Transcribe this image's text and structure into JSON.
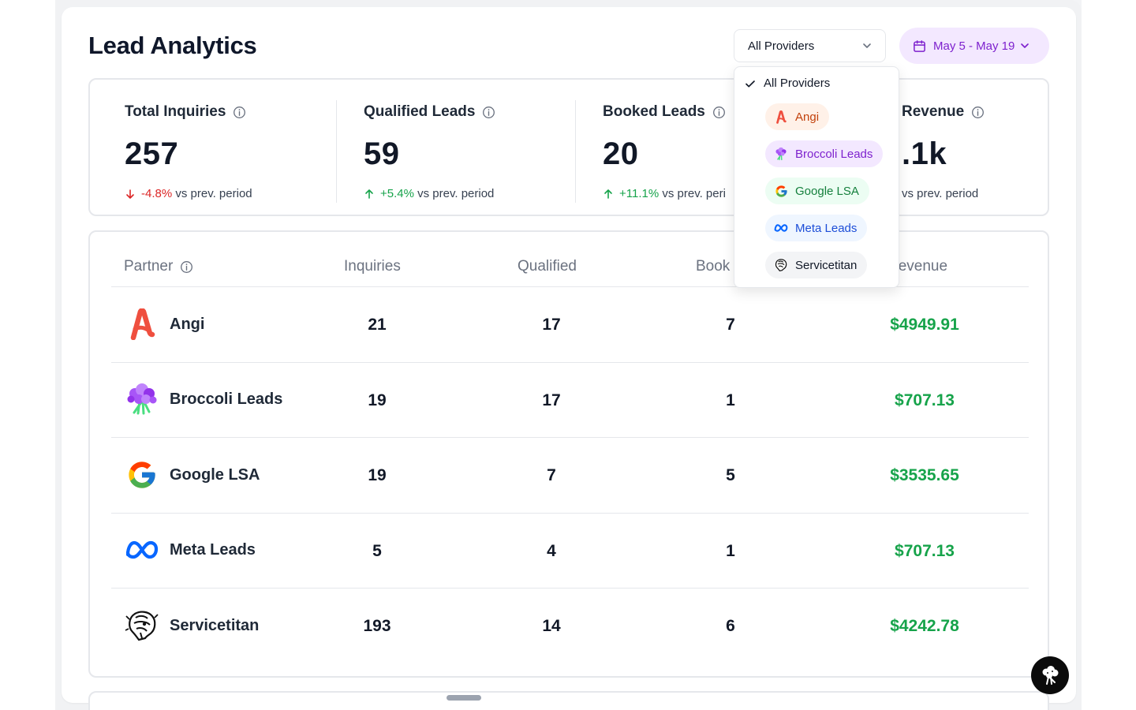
{
  "header": {
    "title": "Lead Analytics",
    "provider_filter": "All Providers",
    "date_range": "May 5 - May 19"
  },
  "stats": [
    {
      "label": "Total Inquiries",
      "value": "257",
      "delta": "-4.8%",
      "delta_suffix": "vs prev. period",
      "direction": "down"
    },
    {
      "label": "Qualified Leads",
      "value": "59",
      "delta": "+5.4%",
      "delta_suffix": "vs prev. period",
      "direction": "up"
    },
    {
      "label": "Booked Leads",
      "value": "20",
      "delta": "+11.1%",
      "delta_suffix": "vs prev. peri",
      "direction": "up"
    },
    {
      "label": "Revenue",
      "value": ".1k",
      "delta": "",
      "delta_suffix": "vs prev. period",
      "direction": "up"
    }
  ],
  "table": {
    "headers": {
      "partner": "Partner",
      "inquiries": "Inquiries",
      "qualified": "Qualified",
      "booked": "Book",
      "revenue": "Revenue"
    },
    "rows": [
      {
        "partner": "Angi",
        "icon": "angi-logo-icon",
        "inquiries": "21",
        "qualified": "17",
        "booked": "7",
        "revenue": "$4949.91"
      },
      {
        "partner": "Broccoli Leads",
        "icon": "broccoli-logo-icon",
        "inquiries": "19",
        "qualified": "17",
        "booked": "1",
        "revenue": "$707.13"
      },
      {
        "partner": "Google LSA",
        "icon": "google-logo-icon",
        "inquiries": "19",
        "qualified": "7",
        "booked": "5",
        "revenue": "$3535.65"
      },
      {
        "partner": "Meta Leads",
        "icon": "meta-logo-icon",
        "inquiries": "5",
        "qualified": "4",
        "booked": "1",
        "revenue": "$707.13"
      },
      {
        "partner": "Servicetitan",
        "icon": "servicetitan-logo-icon",
        "inquiries": "193",
        "qualified": "14",
        "booked": "6",
        "revenue": "$4242.78"
      }
    ]
  },
  "dropdown": {
    "all_label": "All Providers",
    "options": [
      {
        "label": "Angi",
        "icon": "angi-logo-icon",
        "bg": "#fff1e8",
        "color": "#c2410c"
      },
      {
        "label": "Broccoli Leads",
        "icon": "broccoli-logo-icon",
        "bg": "#f3e8ff",
        "color": "#7e22ce"
      },
      {
        "label": "Google LSA",
        "icon": "google-logo-icon",
        "bg": "#ecfdf3",
        "color": "#15803d"
      },
      {
        "label": "Meta Leads",
        "icon": "meta-logo-icon",
        "bg": "#eff6ff",
        "color": "#1d4ed8"
      },
      {
        "label": "Servicetitan",
        "icon": "servicetitan-logo-icon",
        "bg": "#f3f4f6",
        "color": "#111827"
      }
    ]
  },
  "colors": {
    "positive": "#16a34a",
    "negative": "#dc2626",
    "accent": "#7e22ce"
  }
}
